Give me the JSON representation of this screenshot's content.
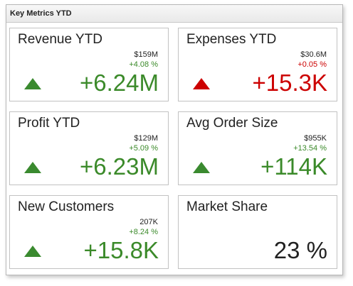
{
  "panel": {
    "title": "Key Metrics YTD"
  },
  "colors": {
    "positive": "#3b8a2a",
    "negative": "#cc0000",
    "neutral": "#222222"
  },
  "cards": [
    {
      "title": "Revenue YTD",
      "absolute": "$159M",
      "percent": "+4.08 %",
      "delta": "+6.24M",
      "indicator": "triangle-up-green-icon"
    },
    {
      "title": "Expenses YTD",
      "absolute": "$30.6M",
      "percent": "+0.05 %",
      "delta": "+15.3K",
      "indicator": "triangle-up-red-icon"
    },
    {
      "title": "Profit YTD",
      "absolute": "$129M",
      "percent": "+5.09 %",
      "delta": "+6.23M",
      "indicator": "triangle-up-green-icon"
    },
    {
      "title": "Avg Order Size",
      "absolute": "$955K",
      "percent": "+13.54 %",
      "delta": "+114K",
      "indicator": "triangle-up-green-icon"
    },
    {
      "title": "New Customers",
      "absolute": "207K",
      "percent": "+8.24 %",
      "delta": "+15.8K",
      "indicator": "triangle-up-green-icon"
    },
    {
      "title": "Market Share",
      "value": "23 %"
    }
  ]
}
